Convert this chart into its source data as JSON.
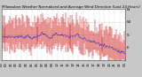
{
  "title": "Milwaukee Weather Normalized and Average Wind Direction (Last 24 Hours)",
  "bg_color": "#c8c8c8",
  "plot_bg_color": "#ffffff",
  "grid_color": "#aaaaaa",
  "bar_color": "#cc0000",
  "line_color": "#2222cc",
  "n_points": 144,
  "y_min": 0,
  "y_max": 360,
  "y_ticks": [
    0,
    90,
    180,
    270,
    360
  ],
  "y_tick_labels": [
    "",
    "E",
    "S",
    "W",
    "N"
  ],
  "tick_fontsize": 3.2,
  "title_fontsize": 3.0
}
